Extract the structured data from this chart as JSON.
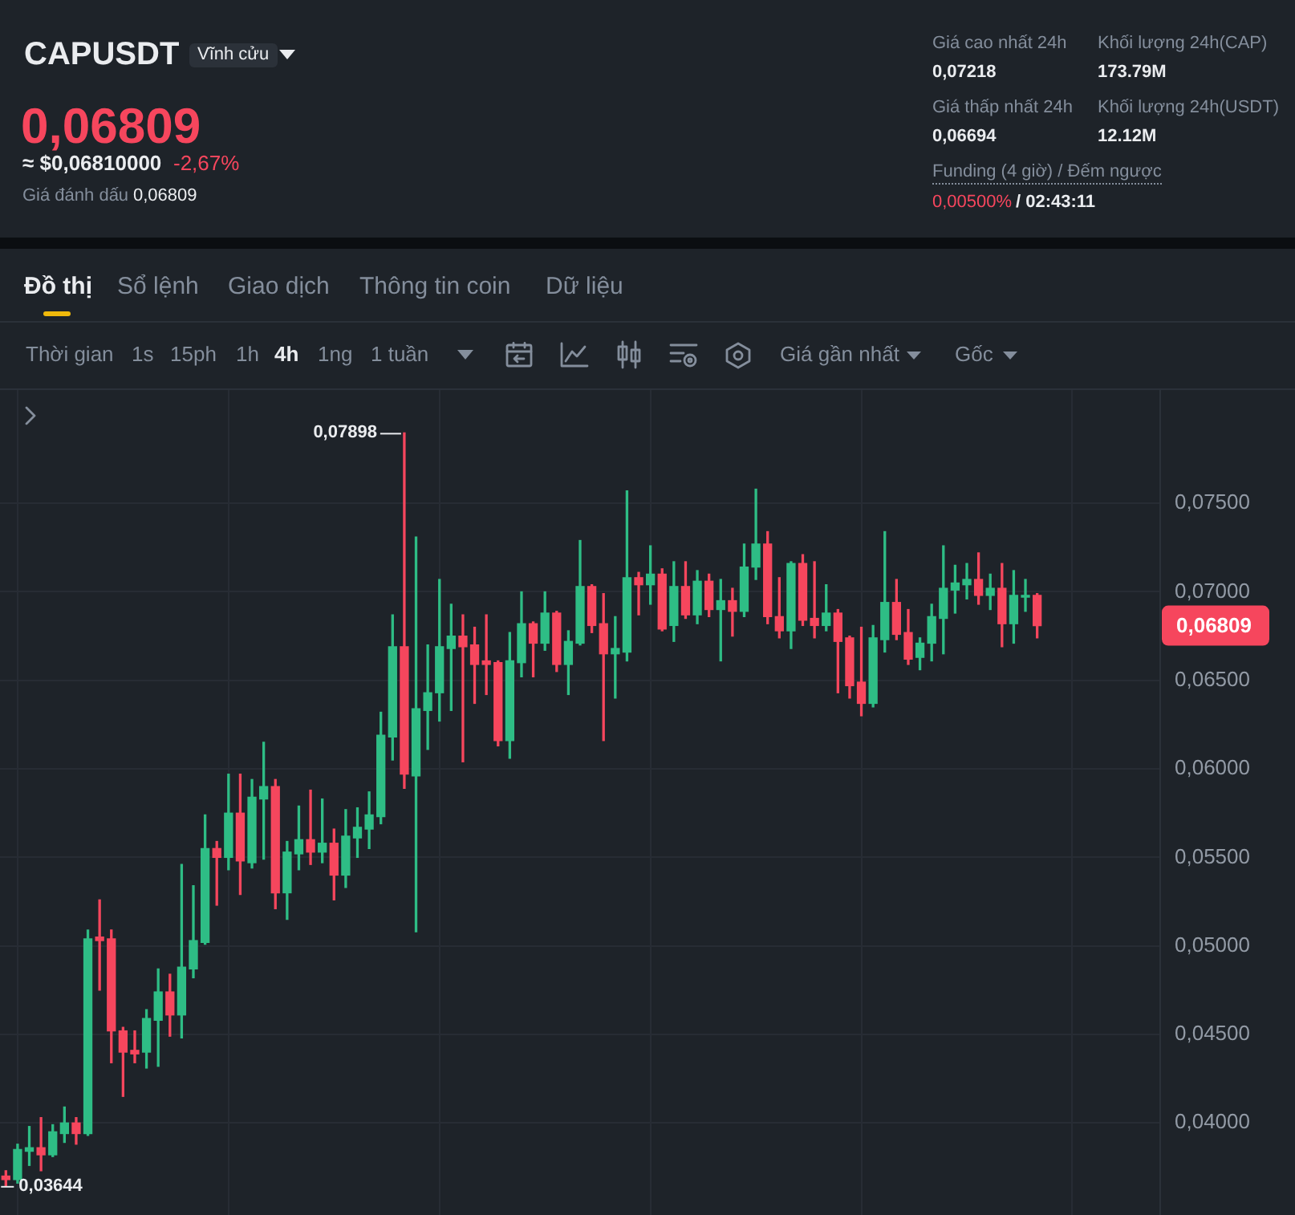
{
  "chart_data": {
    "type": "candlestick",
    "title": "CAPUSDT",
    "annotations": [
      "Vĩnh cửu",
      "0,06809",
      "≈ $0,06810000",
      "-2,67%",
      "Giá đánh dấu",
      "0,06809",
      "Giá cao nhất 24h",
      "0,07218",
      "Khối lượng 24h(CAP)",
      "173.79M",
      "Giá thấp nhất 24h",
      "0,06694",
      "Khối lượng 24h(USDT)",
      "12.12M",
      "Funding (4 giờ) / Đếm ngược",
      "0,00500%",
      "/ 02:43:11",
      "Đồ thị",
      "Sổ lệnh",
      "Giao dịch",
      "Thông tin coin",
      "Dữ liệu",
      "Thời gian",
      "1s",
      "15ph",
      "1h",
      "4h",
      "1ng",
      "1 tuần",
      "Giá gần nhất",
      "Gốc",
      "0,07898",
      "0,03644",
      "0,06809"
    ],
    "categories": [
      null,
      null,
      null,
      null,
      null,
      null,
      null,
      null,
      null,
      null,
      null,
      null,
      null,
      null,
      null,
      null,
      null,
      null,
      null,
      null,
      null,
      null,
      null,
      null,
      null,
      null,
      null,
      null,
      null,
      null,
      null,
      null,
      null,
      null,
      null,
      null,
      null,
      null,
      null,
      null,
      null,
      null,
      null,
      null,
      null,
      null,
      null,
      null,
      null,
      null,
      null,
      null,
      null,
      null,
      null,
      null,
      null,
      null,
      null,
      null,
      null,
      null,
      null,
      null,
      null,
      null,
      null,
      null,
      null,
      null,
      null,
      null,
      null,
      null,
      null,
      null,
      null,
      null,
      null,
      null,
      null,
      null,
      null,
      null,
      null,
      null,
      null,
      null,
      null,
      null,
      null,
      null,
      null,
      null,
      null,
      null,
      null,
      null,
      null
    ],
    "ohlc": [
      [
        0.037,
        0.0373,
        0.03644,
        0.0368
      ],
      [
        0.0368,
        0.0388,
        0.0366,
        0.0385
      ],
      [
        0.0384,
        0.0398,
        0.0376,
        0.0386
      ],
      [
        0.0386,
        0.0403,
        0.0373,
        0.0382
      ],
      [
        0.0382,
        0.0399,
        0.0381,
        0.0395
      ],
      [
        0.0394,
        0.0409,
        0.0389,
        0.04
      ],
      [
        0.04,
        0.0403,
        0.0388,
        0.0394
      ],
      [
        0.0394,
        0.0509,
        0.0393,
        0.0504
      ],
      [
        0.0505,
        0.0526,
        0.0475,
        0.0503
      ],
      [
        0.0504,
        0.0509,
        0.0434,
        0.0452
      ],
      [
        0.0452,
        0.0454,
        0.0415,
        0.044
      ],
      [
        0.0441,
        0.0452,
        0.0434,
        0.0439
      ],
      [
        0.044,
        0.0464,
        0.0431,
        0.0459
      ],
      [
        0.0458,
        0.0487,
        0.0432,
        0.0474
      ],
      [
        0.0474,
        0.0484,
        0.0449,
        0.0461
      ],
      [
        0.0461,
        0.0546,
        0.0448,
        0.0488
      ],
      [
        0.0487,
        0.0534,
        0.0482,
        0.0503
      ],
      [
        0.0502,
        0.0574,
        0.0501,
        0.0555
      ],
      [
        0.0555,
        0.0559,
        0.0523,
        0.055
      ],
      [
        0.055,
        0.0597,
        0.0543,
        0.0575
      ],
      [
        0.0575,
        0.0597,
        0.0529,
        0.0548
      ],
      [
        0.0547,
        0.0594,
        0.0544,
        0.0584
      ],
      [
        0.0583,
        0.0615,
        0.0549,
        0.059
      ],
      [
        0.059,
        0.0594,
        0.0521,
        0.053
      ],
      [
        0.053,
        0.0559,
        0.0515,
        0.0553
      ],
      [
        0.0552,
        0.0579,
        0.0543,
        0.056
      ],
      [
        0.056,
        0.0588,
        0.0546,
        0.0553
      ],
      [
        0.0553,
        0.0583,
        0.0547,
        0.0558
      ],
      [
        0.0558,
        0.0566,
        0.0526,
        0.054
      ],
      [
        0.054,
        0.0577,
        0.0533,
        0.0562
      ],
      [
        0.0561,
        0.0578,
        0.055,
        0.0567
      ],
      [
        0.0566,
        0.0587,
        0.0555,
        0.0574
      ],
      [
        0.0573,
        0.0632,
        0.0569,
        0.0619
      ],
      [
        0.0618,
        0.0687,
        0.0605,
        0.0669
      ],
      [
        0.0669,
        0.07898,
        0.0589,
        0.0597
      ],
      [
        0.0596,
        0.0731,
        0.0508,
        0.0634
      ],
      [
        0.0633,
        0.067,
        0.0611,
        0.0643
      ],
      [
        0.0643,
        0.0707,
        0.0627,
        0.0669
      ],
      [
        0.0668,
        0.0693,
        0.0633,
        0.0675
      ],
      [
        0.0675,
        0.0687,
        0.0604,
        0.0669
      ],
      [
        0.067,
        0.068,
        0.0637,
        0.0659
      ],
      [
        0.0661,
        0.0687,
        0.0642,
        0.0659
      ],
      [
        0.066,
        0.0661,
        0.0613,
        0.0616
      ],
      [
        0.0616,
        0.0677,
        0.0606,
        0.0661
      ],
      [
        0.066,
        0.07,
        0.0652,
        0.0682
      ],
      [
        0.0682,
        0.0683,
        0.0652,
        0.0671
      ],
      [
        0.0671,
        0.07,
        0.0667,
        0.0688
      ],
      [
        0.0688,
        0.0689,
        0.0655,
        0.0659
      ],
      [
        0.0659,
        0.0678,
        0.0642,
        0.0672
      ],
      [
        0.0671,
        0.0729,
        0.067,
        0.0703
      ],
      [
        0.0703,
        0.0704,
        0.0677,
        0.0681
      ],
      [
        0.0682,
        0.0699,
        0.0616,
        0.0665
      ],
      [
        0.0665,
        0.0686,
        0.064,
        0.0668
      ],
      [
        0.0666,
        0.0757,
        0.0661,
        0.0708
      ],
      [
        0.0708,
        0.0711,
        0.0687,
        0.0704
      ],
      [
        0.0704,
        0.0726,
        0.0693,
        0.071
      ],
      [
        0.071,
        0.0713,
        0.0678,
        0.0679
      ],
      [
        0.0681,
        0.0717,
        0.0672,
        0.0703
      ],
      [
        0.0703,
        0.0717,
        0.0685,
        0.0687
      ],
      [
        0.0687,
        0.0712,
        0.0682,
        0.0706
      ],
      [
        0.0706,
        0.071,
        0.0686,
        0.069
      ],
      [
        0.069,
        0.0707,
        0.0661,
        0.0695
      ],
      [
        0.0695,
        0.0702,
        0.0675,
        0.0689
      ],
      [
        0.0689,
        0.0727,
        0.0686,
        0.0714
      ],
      [
        0.0714,
        0.0758,
        0.0707,
        0.0727
      ],
      [
        0.0727,
        0.0734,
        0.0682,
        0.0686
      ],
      [
        0.0686,
        0.0708,
        0.0674,
        0.0678
      ],
      [
        0.0678,
        0.0717,
        0.0668,
        0.0716
      ],
      [
        0.0716,
        0.0721,
        0.0681,
        0.0684
      ],
      [
        0.0685,
        0.0717,
        0.0674,
        0.0681
      ],
      [
        0.0681,
        0.0704,
        0.0678,
        0.0688
      ],
      [
        0.0688,
        0.069,
        0.0643,
        0.0672
      ],
      [
        0.0674,
        0.0675,
        0.064,
        0.0647
      ],
      [
        0.0649,
        0.068,
        0.063,
        0.0637
      ],
      [
        0.0637,
        0.0681,
        0.0635,
        0.0674
      ],
      [
        0.0673,
        0.0734,
        0.0666,
        0.0694
      ],
      [
        0.0694,
        0.0707,
        0.0673,
        0.0676
      ],
      [
        0.0677,
        0.069,
        0.0659,
        0.0662
      ],
      [
        0.0663,
        0.0674,
        0.0656,
        0.0671
      ],
      [
        0.0671,
        0.0693,
        0.0661,
        0.0686
      ],
      [
        0.0685,
        0.0726,
        0.0665,
        0.0702
      ],
      [
        0.0701,
        0.0715,
        0.0688,
        0.0705
      ],
      [
        0.0704,
        0.0716,
        0.0696,
        0.0707
      ],
      [
        0.0707,
        0.0722,
        0.0693,
        0.0698
      ],
      [
        0.0698,
        0.071,
        0.069,
        0.0702
      ],
      [
        0.0702,
        0.0716,
        0.0669,
        0.0682
      ],
      [
        0.0682,
        0.0712,
        0.0671,
        0.0698
      ],
      [
        0.0697,
        0.0707,
        0.0689,
        0.0698
      ],
      [
        0.0698,
        0.0699,
        0.0674,
        0.06809
      ],
      null,
      null,
      null,
      null,
      null,
      null,
      null,
      null,
      null,
      null
    ],
    "colors": [
      "#f6465d",
      "#2ebd85",
      "#2ebd85",
      "#f6465d",
      "#2ebd85",
      "#2ebd85",
      "#f6465d",
      "#2ebd85",
      "#f6465d",
      "#f6465d",
      "#f6465d",
      "#f6465d",
      "#2ebd85",
      "#2ebd85",
      "#f6465d",
      "#2ebd85",
      "#2ebd85",
      "#2ebd85",
      "#f6465d",
      "#2ebd85",
      "#f6465d",
      "#2ebd85",
      "#2ebd85",
      "#f6465d",
      "#2ebd85",
      "#2ebd85",
      "#f6465d",
      "#2ebd85",
      "#f6465d",
      "#2ebd85",
      "#2ebd85",
      "#2ebd85",
      "#2ebd85",
      "#2ebd85",
      "#f6465d",
      "#2ebd85",
      "#2ebd85",
      "#2ebd85",
      "#2ebd85",
      "#f6465d",
      "#f6465d",
      "#f6465d",
      "#f6465d",
      "#2ebd85",
      "#2ebd85",
      "#f6465d",
      "#2ebd85",
      "#f6465d",
      "#2ebd85",
      "#2ebd85",
      "#f6465d",
      "#f6465d",
      "#2ebd85",
      "#2ebd85",
      "#f6465d",
      "#2ebd85",
      "#f6465d",
      "#2ebd85",
      "#f6465d",
      "#2ebd85",
      "#f6465d",
      "#2ebd85",
      "#f6465d",
      "#2ebd85",
      "#2ebd85",
      "#f6465d",
      "#f6465d",
      "#2ebd85",
      "#f6465d",
      "#f6465d",
      "#2ebd85",
      "#f6465d",
      "#f6465d",
      "#f6465d",
      "#2ebd85",
      "#2ebd85",
      "#f6465d",
      "#f6465d",
      "#2ebd85",
      "#2ebd85",
      "#2ebd85",
      "#2ebd85",
      "#2ebd85",
      "#f6465d",
      "#2ebd85",
      "#f6465d",
      "#2ebd85",
      "#2ebd85",
      "#f6465d",
      null,
      null,
      null,
      null,
      null,
      null,
      null,
      null,
      null,
      null
    ],
    "ylim": [
      0.0348,
      0.0814
    ],
    "yticks": [
      {
        "value": 0.04,
        "label": "0,04000"
      },
      {
        "value": 0.045,
        "label": "0,04500"
      },
      {
        "value": 0.05,
        "label": "0,05000"
      },
      {
        "value": 0.055,
        "label": "0,05500"
      },
      {
        "value": 0.06,
        "label": "0,06000"
      },
      {
        "value": 0.065,
        "label": "0,06500"
      },
      {
        "value": 0.07,
        "label": "0,07000"
      },
      {
        "value": 0.075,
        "label": "0,07500"
      }
    ],
    "grid": true,
    "tick_labels": "y"
  }
}
